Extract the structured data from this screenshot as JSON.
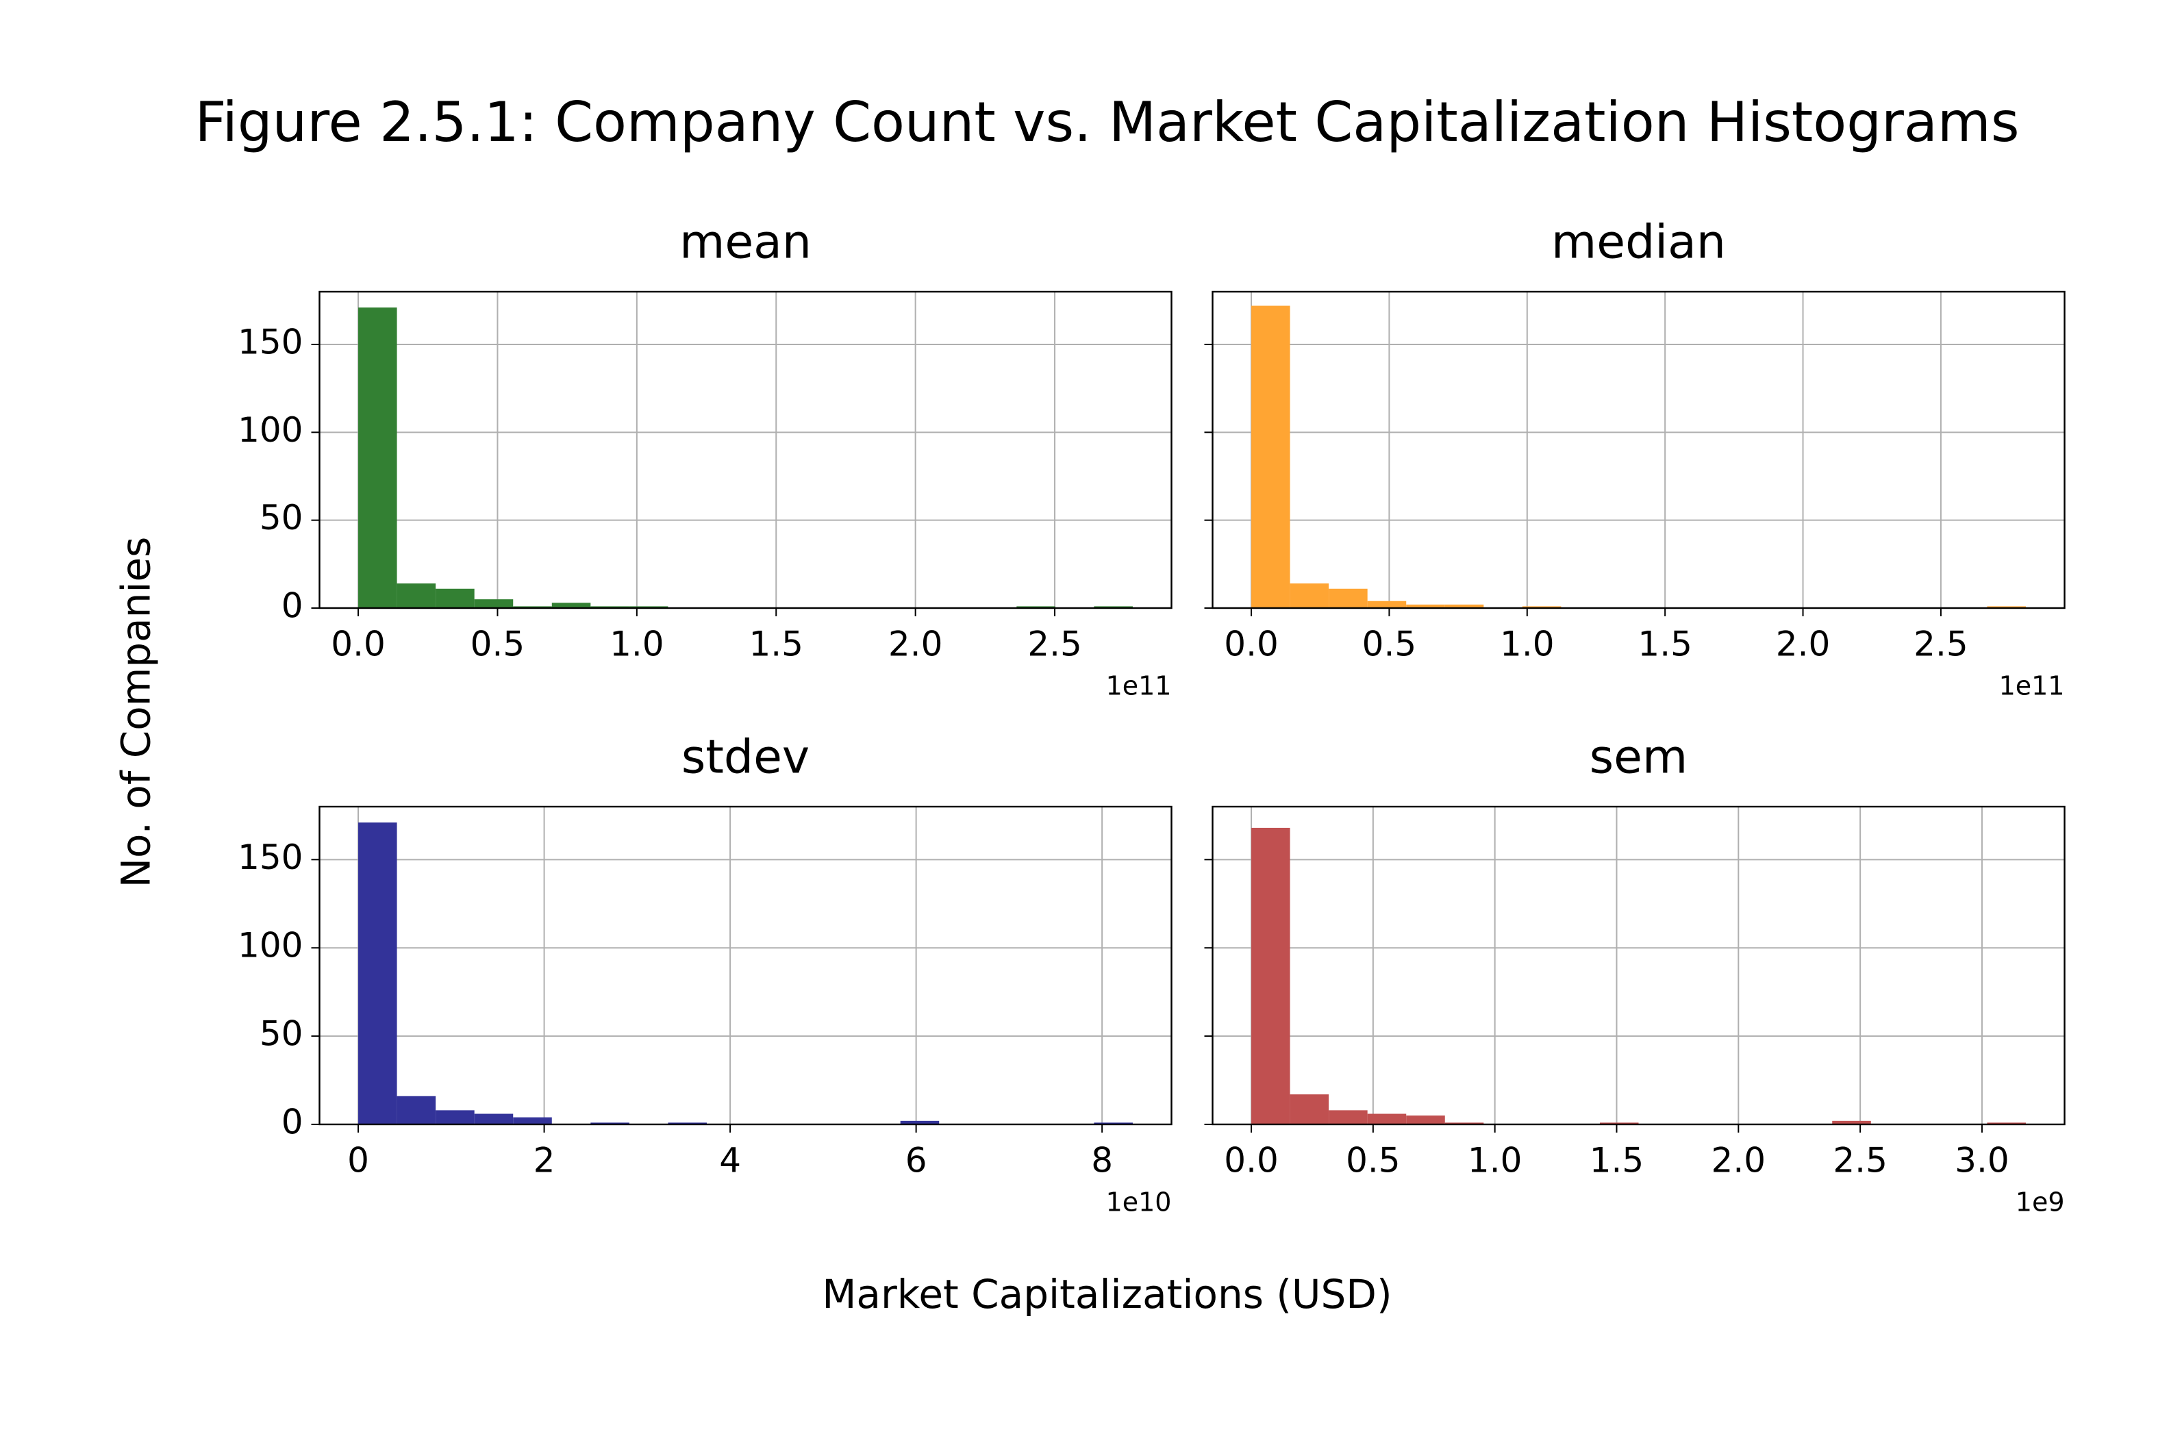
{
  "title": "Figure 2.5.1: Company Count vs. Market Capitalization Histograms",
  "xlabel": "Market Capitalizations (USD)",
  "ylabel": "No. of Companies",
  "chart_data": [
    {
      "type": "histogram",
      "title": "mean",
      "color": "#338033",
      "bins": [
        0,
        0.139,
        0.278,
        0.417,
        0.556,
        0.695,
        0.834,
        0.973,
        1.112,
        1.251,
        1.39,
        1.529,
        1.668,
        1.807,
        1.946,
        2.085,
        2.224,
        2.363,
        2.502,
        2.641,
        2.78
      ],
      "counts": [
        171,
        14,
        11,
        5,
        1,
        3,
        1,
        1,
        0,
        0,
        0,
        0,
        0,
        0,
        0,
        0,
        0,
        1,
        0,
        1
      ],
      "xlim": [
        -0.139,
        2.919
      ],
      "xticks": [
        {
          "value": 0,
          "label": "0.0"
        },
        0.5,
        {
          "value": 1,
          "label": "1.0"
        },
        1.5,
        {
          "value": 2,
          "label": "2.0"
        },
        2.5
      ],
      "x_offset_label": "1e11",
      "ylim": [
        0,
        180
      ],
      "yticks": [
        0,
        50,
        100,
        150
      ],
      "ytick_labels": true,
      "grid": true
    },
    {
      "type": "histogram",
      "title": "median",
      "color": "#ffa533",
      "bins": [
        0,
        0.1404,
        0.2808,
        0.4212,
        0.5616,
        0.702,
        0.8424,
        0.9828,
        1.1232,
        1.2636,
        1.404,
        1.5444,
        1.6848,
        1.8252,
        1.9656,
        2.106,
        2.2464,
        2.3868,
        2.5272,
        2.6676,
        2.808
      ],
      "counts": [
        172,
        14,
        11,
        4,
        2,
        2,
        0,
        1,
        0,
        0,
        0,
        0,
        0,
        0,
        0,
        0,
        0,
        0,
        0,
        1
      ],
      "xlim": [
        -0.1404,
        2.9484
      ],
      "xticks": [
        {
          "value": 0,
          "label": "0.0"
        },
        0.5,
        {
          "value": 1,
          "label": "1.0"
        },
        1.5,
        {
          "value": 2,
          "label": "2.0"
        },
        2.5
      ],
      "x_offset_label": "1e11",
      "ylim": [
        0,
        180
      ],
      "yticks": [
        0,
        50,
        100,
        150
      ],
      "ytick_labels": false,
      "grid": true
    },
    {
      "type": "histogram",
      "title": "stdev",
      "color": "#333399",
      "bins": [
        0,
        0.4165,
        0.833,
        1.2495,
        1.666,
        2.0825,
        2.499,
        2.9155,
        3.332,
        3.7485,
        4.165,
        4.5815,
        4.998,
        5.4145,
        5.831,
        6.2475,
        6.664,
        7.0805,
        7.497,
        7.9135,
        8.33
      ],
      "counts": [
        171,
        16,
        8,
        6,
        4,
        0,
        1,
        0,
        1,
        0,
        0,
        0,
        0,
        0,
        2,
        0,
        0,
        0,
        0,
        1
      ],
      "xlim": [
        -0.4165,
        8.7465
      ],
      "xticks": [
        0,
        2,
        4,
        6,
        8
      ],
      "x_offset_label": "1e10",
      "ylim": [
        0,
        180
      ],
      "yticks": [
        0,
        50,
        100,
        150
      ],
      "ytick_labels": true,
      "grid": true
    },
    {
      "type": "histogram",
      "title": "sem",
      "color": "#c05050",
      "bins": [
        0,
        0.159,
        0.318,
        0.477,
        0.636,
        0.795,
        0.954,
        1.113,
        1.272,
        1.431,
        1.59,
        1.749,
        1.908,
        2.067,
        2.226,
        2.385,
        2.544,
        2.703,
        2.862,
        3.021,
        3.18
      ],
      "counts": [
        168,
        17,
        8,
        6,
        5,
        1,
        0,
        0,
        0,
        1,
        0,
        0,
        0,
        0,
        0,
        2,
        0,
        0,
        0,
        1
      ],
      "xlim": [
        -0.159,
        3.339
      ],
      "xticks": [
        {
          "value": 0,
          "label": "0.0"
        },
        0.5,
        {
          "value": 1,
          "label": "1.0"
        },
        1.5,
        {
          "value": 2,
          "label": "2.0"
        },
        2.5,
        {
          "value": 3,
          "label": "3.0"
        }
      ],
      "x_offset_label": "1e9",
      "ylim": [
        0,
        180
      ],
      "yticks": [
        0,
        50,
        100,
        150
      ],
      "ytick_labels": false,
      "grid": true
    }
  ]
}
